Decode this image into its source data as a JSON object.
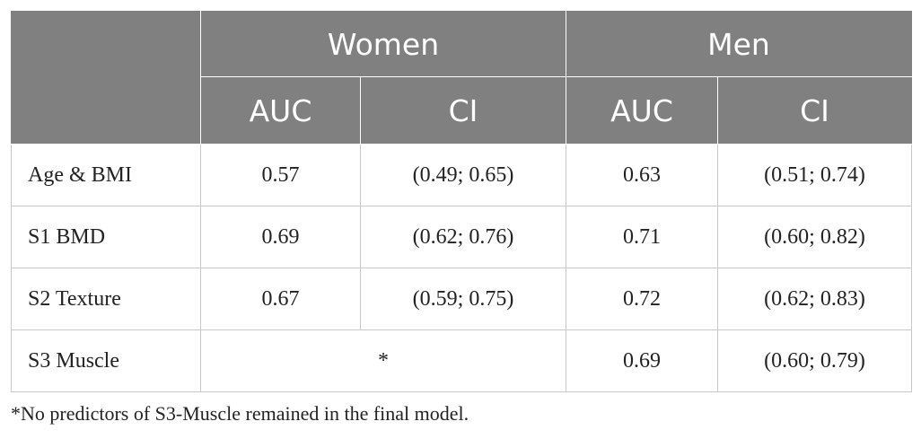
{
  "table": {
    "groups": [
      "Women",
      "Men"
    ],
    "subheaders": [
      "AUC",
      "CI",
      "AUC",
      "CI"
    ],
    "rows": [
      {
        "label": "Age & BMI",
        "women_auc": "0.57",
        "women_ci": "(0.49; 0.65)",
        "men_auc": "0.63",
        "men_ci": "(0.51; 0.74)"
      },
      {
        "label": "S1 BMD",
        "women_auc": "0.69",
        "women_ci": "(0.62; 0.76)",
        "men_auc": "0.71",
        "men_ci": "(0.60; 0.82)"
      },
      {
        "label": "S2 Texture",
        "women_auc": "0.67",
        "women_ci": "(0.59; 0.75)",
        "men_auc": "0.72",
        "men_ci": "(0.62; 0.83)"
      },
      {
        "label": "S3 Muscle",
        "women_merged": "*",
        "men_auc": "0.69",
        "men_ci": "(0.60; 0.79)"
      }
    ]
  },
  "footnote": "*No predictors of S3-Muscle remained in the final model."
}
